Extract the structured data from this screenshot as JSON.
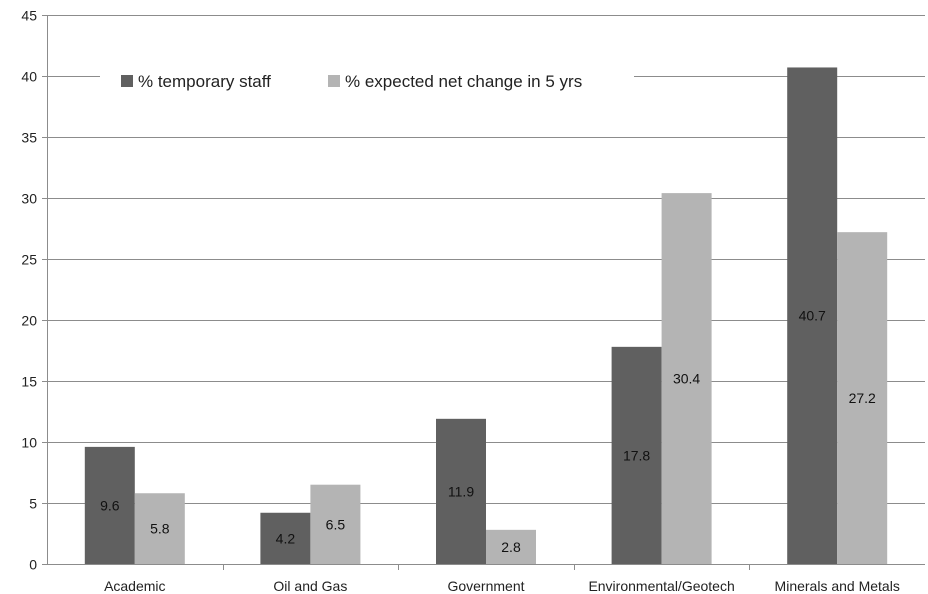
{
  "chart_data": {
    "type": "bar",
    "categories": [
      "Academic",
      "Oil and Gas",
      "Government",
      "Environmental/Geotech",
      "Minerals and Metals"
    ],
    "series": [
      {
        "name": "% temporary staff",
        "values": [
          9.6,
          4.2,
          11.9,
          17.8,
          40.7
        ],
        "color": "#606060"
      },
      {
        "name": "% expected net change in 5 yrs",
        "values": [
          5.8,
          6.5,
          2.8,
          30.4,
          27.2
        ],
        "color": "#b4b4b4"
      }
    ],
    "data_labels": [
      [
        "9.6",
        "4.2",
        "11.9",
        "17.8",
        "40.7"
      ],
      [
        "5.8",
        "6.5",
        "2.8",
        "30.4",
        "27.2"
      ]
    ],
    "yticks": [
      "0",
      "5",
      "10",
      "15",
      "20",
      "25",
      "30",
      "35",
      "40",
      "45"
    ],
    "ylim": [
      0,
      45
    ],
    "grid": true,
    "legend_position": "top-left",
    "title": "",
    "xlabel": "",
    "ylabel": ""
  }
}
